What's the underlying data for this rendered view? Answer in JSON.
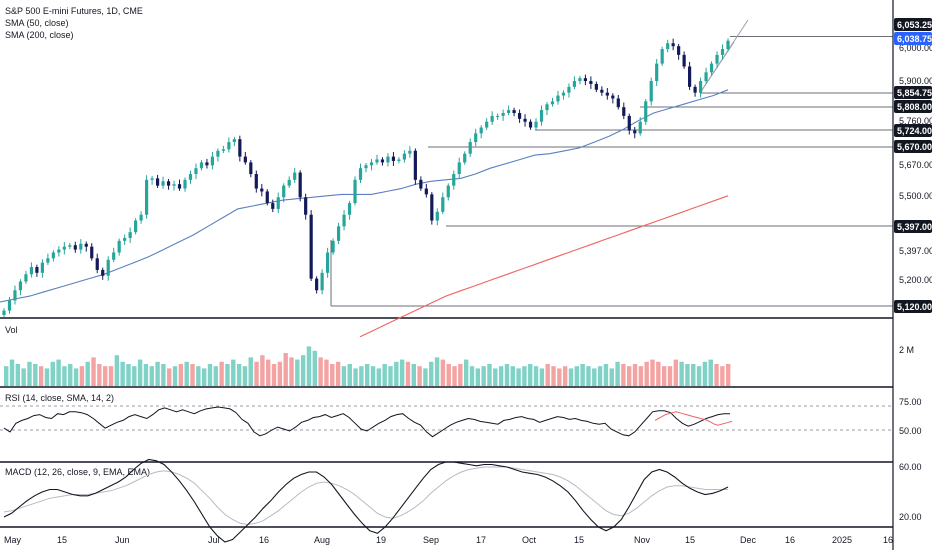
{
  "legend": {
    "title": "S&P 500 E-mini Futures, 1D, CME",
    "sma50": "SMA (50, close)",
    "sma200": "SMA (200, close)"
  },
  "panels": {
    "volume": {
      "label": "Vol",
      "axis_label": "2 M"
    },
    "rsi": {
      "label": "RSI (14, close, SMA, 14, 2)",
      "ticks": [
        "75.00",
        "50.00"
      ]
    },
    "macd": {
      "label": "MACD (12, 26, close, 9, EMA, EMA)",
      "ticks": [
        "60.00",
        "20.00"
      ]
    }
  },
  "colors": {
    "up": "#26a69a",
    "down": "#131a5a",
    "sma50": "#5b7fc0",
    "sma200": "#f06262",
    "vol_up": "#7fd2c5",
    "vol_down": "#f4a3a3"
  },
  "chart_data": {
    "type": "candlestick",
    "title": "S&P 500 E-mini Futures, 1D, CME",
    "y_ticks": [
      "6,000.00",
      "5,900.00",
      "5,760.00",
      "5,670.00",
      "5,500.00",
      "5,397.00",
      "5,200.00"
    ],
    "x_ticks": [
      "May",
      "15",
      "Jun",
      "Jul",
      "16",
      "Aug",
      "19",
      "Sep",
      "17",
      "Oct",
      "15",
      "Nov",
      "15",
      "Dec",
      "16",
      "2025",
      "16"
    ],
    "price_tags": [
      {
        "label": "6,053.25",
        "value": 6053.25,
        "style": "dark"
      },
      {
        "label": "6,038.75",
        "value": 6038.75,
        "style": "blue"
      },
      {
        "label": "5,854.75",
        "value": 5854.75,
        "style": "dark"
      },
      {
        "label": "5,808.00",
        "value": 5808.0,
        "style": "dark"
      },
      {
        "label": "5,724.00",
        "value": 5724.0,
        "style": "dark"
      },
      {
        "label": "5,670.00",
        "value": 5670.0,
        "style": "dark"
      },
      {
        "label": "5,397.00",
        "value": 5397.0,
        "style": "dark"
      },
      {
        "label": "5,120.00",
        "value": 5120.0,
        "style": "dark"
      }
    ],
    "close_path": [
      5110,
      5145,
      5180,
      5210,
      5235,
      5260,
      5240,
      5275,
      5290,
      5310,
      5320,
      5330,
      5335,
      5320,
      5340,
      5330,
      5290,
      5250,
      5230,
      5285,
      5310,
      5350,
      5360,
      5380,
      5420,
      5440,
      5560,
      5565,
      5540,
      5555,
      5540,
      5545,
      5530,
      5560,
      5580,
      5600,
      5620,
      5610,
      5640,
      5660,
      5665,
      5690,
      5700,
      5640,
      5620,
      5580,
      5530,
      5520,
      5480,
      5460,
      5500,
      5540,
      5560,
      5585,
      5500,
      5440,
      5220,
      5180,
      5240,
      5310,
      5350,
      5400,
      5440,
      5480,
      5560,
      5600,
      5610,
      5620,
      5630,
      5620,
      5640,
      5625,
      5630,
      5650,
      5660,
      5560,
      5530,
      5510,
      5420,
      5450,
      5500,
      5540,
      5580,
      5620,
      5650,
      5690,
      5720,
      5740,
      5760,
      5780,
      5780,
      5790,
      5800,
      5790,
      5770,
      5760,
      5740,
      5760,
      5800,
      5820,
      5830,
      5850,
      5860,
      5880,
      5900,
      5910,
      5900,
      5890,
      5870,
      5860,
      5850,
      5840,
      5810,
      5780,
      5730,
      5720,
      5760,
      5830,
      5900,
      5960,
      6010,
      6030,
      6020,
      5990,
      5950,
      5880,
      5860,
      5900,
      5930,
      5960,
      5990,
      6010,
      6038.75
    ],
    "sma50": [
      5140,
      5150,
      5160,
      5175,
      5190,
      5205,
      5220,
      5235,
      5255,
      5275,
      5295,
      5320,
      5345,
      5370,
      5400,
      5430,
      5460,
      5470,
      5480,
      5490,
      5495,
      5500,
      5505,
      5510,
      5510,
      5510,
      5520,
      5530,
      5545,
      5555,
      5560,
      5565,
      5580,
      5600,
      5615,
      5630,
      5645,
      5650,
      5660,
      5670,
      5690,
      5710,
      5735,
      5765,
      5790,
      5805,
      5820,
      5835,
      5850,
      5870
    ],
    "sma200": [
      5020,
      5040,
      5060,
      5080,
      5100,
      5120,
      5140,
      5160,
      5175,
      5190,
      5205,
      5220,
      5235,
      5250,
      5265,
      5280,
      5295,
      5310,
      5325,
      5340,
      5355,
      5370,
      5385,
      5400,
      5415,
      5430,
      5445,
      5460,
      5475,
      5490,
      5505
    ],
    "volume": [
      0.9,
      1.2,
      1.0,
      0.8,
      1.1,
      1.0,
      0.9,
      0.8,
      1.1,
      1.2,
      0.9,
      1.0,
      0.8,
      0.9,
      1.1,
      1.3,
      1.0,
      0.9,
      0.9,
      1.4,
      1.1,
      1.0,
      0.9,
      1.2,
      1.0,
      0.9,
      1.1,
      1.0,
      0.8,
      0.9,
      1.0,
      1.1,
      1.0,
      0.9,
      0.8,
      1.0,
      0.9,
      1.1,
      1.0,
      1.2,
      1.0,
      0.9,
      1.3,
      1.1,
      1.4,
      1.2,
      1.0,
      1.1,
      1.5,
      1.3,
      1.2,
      1.4,
      1.8,
      1.6,
      1.3,
      1.2,
      1.0,
      1.1,
      0.9,
      1.0,
      0.8,
      0.9,
      1.0,
      0.9,
      0.8,
      1.0,
      0.9,
      1.1,
      1.2,
      1.1,
      1.0,
      0.9,
      0.8,
      1.1,
      1.3,
      1.2,
      1.0,
      0.9,
      1.0,
      1.2,
      0.9,
      0.8,
      0.9,
      1.0,
      0.8,
      0.9,
      1.0,
      0.9,
      0.8,
      0.9,
      1.0,
      0.9,
      0.8,
      1.0,
      0.9,
      0.8,
      0.9,
      0.8,
      0.9,
      1.0,
      0.9,
      0.8,
      0.9,
      1.0,
      0.8,
      1.1,
      1.0,
      0.9,
      1.0,
      0.9,
      1.1,
      1.2,
      1.1,
      0.9,
      0.9,
      1.2,
      1.1,
      1.0,
      1.0,
      0.9,
      1.1,
      1.2,
      1.0,
      0.9,
      1.0
    ],
    "rsi": [
      52,
      48,
      57,
      60,
      62,
      65,
      66,
      63,
      62,
      67,
      66,
      69,
      69,
      68,
      66,
      62,
      57,
      52,
      55,
      58,
      60,
      64,
      66,
      64,
      62,
      66,
      71,
      73,
      71,
      69,
      71,
      69,
      67,
      70,
      72,
      73,
      74,
      73,
      72,
      68,
      61,
      57,
      48,
      44,
      46,
      50,
      53,
      51,
      49,
      53,
      58,
      60,
      63,
      64,
      66,
      63,
      65,
      67,
      63,
      57,
      51,
      49,
      53,
      57,
      60,
      64,
      66,
      67,
      62,
      58,
      55,
      48,
      43,
      47,
      51,
      55,
      58,
      60,
      62,
      61,
      59,
      58,
      57,
      56,
      60,
      61,
      63,
      64,
      62,
      61,
      58,
      60,
      62,
      64,
      63,
      61,
      62,
      60,
      59,
      57,
      56,
      57,
      51,
      48,
      45,
      44,
      48,
      55,
      62,
      69,
      70,
      70,
      68,
      62,
      57,
      54,
      56,
      59,
      62,
      64,
      66,
      67,
      67
    ],
    "rsi_sma": [
      60,
      62,
      64,
      66,
      67,
      68,
      69,
      68,
      67,
      66,
      65,
      64,
      63,
      62,
      61,
      60,
      58,
      56,
      55,
      56,
      57,
      58,
      59
    ],
    "macd": [
      20,
      23,
      28,
      33,
      37,
      40,
      42,
      42,
      40,
      38,
      37,
      37,
      39,
      42,
      45,
      48,
      52,
      58,
      63,
      66,
      65,
      62,
      56,
      49,
      41,
      32,
      22,
      12,
      5,
      0,
      2,
      8,
      14,
      20,
      27,
      33,
      40,
      46,
      51,
      54,
      56,
      56,
      52,
      46,
      38,
      30,
      22,
      15,
      9,
      7,
      12,
      19,
      27,
      35,
      43,
      51,
      58,
      62,
      64,
      64,
      63,
      62,
      61,
      62,
      62,
      61,
      60,
      58,
      56,
      55,
      54,
      52,
      49,
      45,
      40,
      33,
      25,
      18,
      12,
      9,
      12,
      18,
      28,
      39,
      50,
      56,
      58,
      56,
      52,
      47,
      43,
      40,
      38,
      39,
      41,
      44
    ],
    "macd_signal": [
      24,
      25,
      27,
      29,
      31,
      33,
      35,
      36,
      37,
      38,
      38,
      38,
      39,
      40,
      41,
      43,
      45,
      48,
      51,
      54,
      56,
      57,
      56,
      54,
      51,
      47,
      41,
      35,
      28,
      22,
      18,
      15,
      14,
      15,
      17,
      21,
      25,
      30,
      35,
      40,
      44,
      47,
      48,
      47,
      45,
      42,
      38,
      33,
      28,
      23,
      20,
      19,
      21,
      24,
      28,
      33,
      39,
      44,
      49,
      53,
      56,
      58,
      59,
      60,
      60,
      60,
      60,
      59,
      58,
      57,
      56,
      55,
      54,
      52,
      49,
      45,
      40,
      35,
      30,
      25,
      22,
      21,
      23,
      27,
      32,
      37,
      41,
      44,
      45,
      45,
      44,
      43,
      42,
      42,
      42,
      42
    ]
  }
}
